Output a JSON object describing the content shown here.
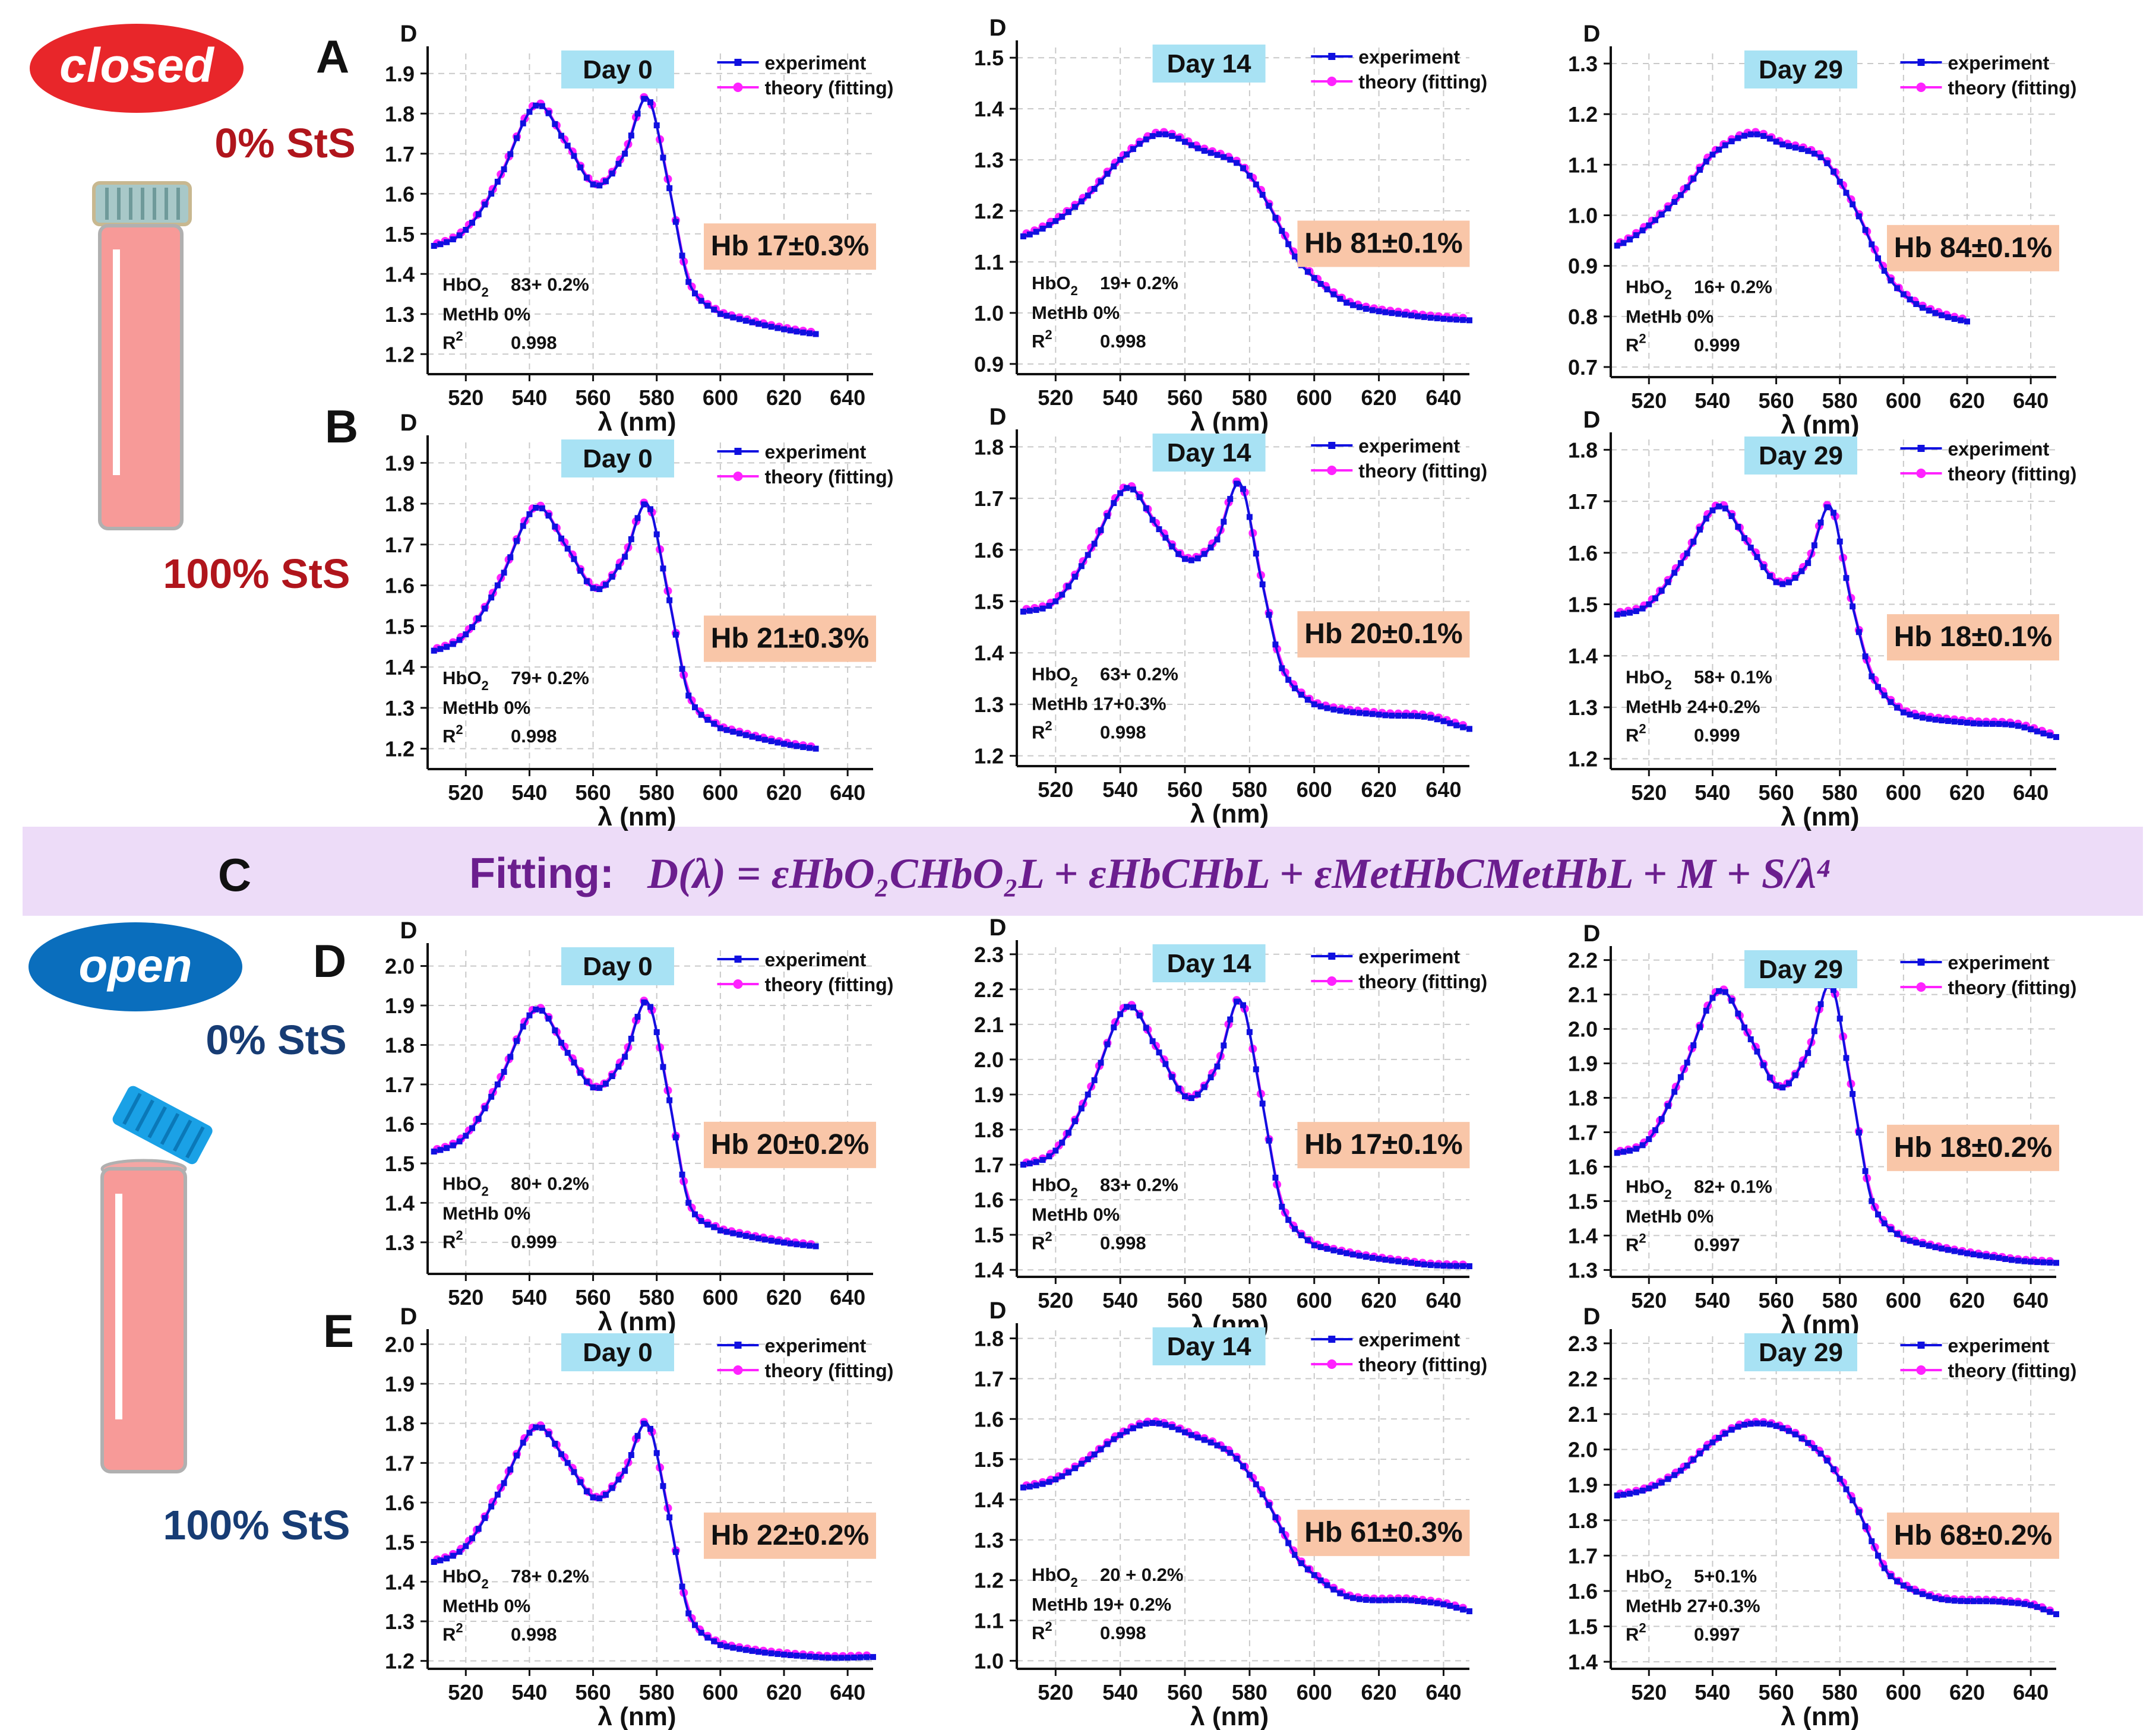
{
  "labels": {
    "closed": "closed",
    "open": "open",
    "sts_0": "0% StS",
    "sts_100": "100% StS",
    "section_c": "C",
    "fitting_prefix": "Fitting:",
    "fitting_formula": "D(λ) = εHbO₂CHbO₂L + εHbCHbL + εMetHbCMetHbL + M + S/λ⁴"
  },
  "colors": {
    "experiment": "#1010e0",
    "theory": "#ff22ff",
    "day_box": "#a8e2f4",
    "hb_box": "#f9c6a8",
    "closed_red": "#e8262a",
    "open_blue": "#0a6ebd",
    "dark_red": "#b0151c",
    "dark_blue": "#173c74",
    "fit_band": "#eddcf8",
    "fit_text": "#6b1e8e",
    "vial_pink": "#f79a98",
    "cap_blue": "#1aa1e6",
    "cap_teal": "#a8c8c8"
  },
  "icons": {
    "closed_vial": "closed-vial-icon",
    "open_vial": "open-vial-icon"
  },
  "chart_data": [
    {
      "type": "line",
      "panel": "A",
      "day": "Day 0",
      "hb": "Hb 17±0.3%",
      "ylabel": "D",
      "xlabel": "λ (nm)",
      "legend": [
        "experiment",
        "theory (fitting)"
      ],
      "xlim": [
        508,
        648
      ],
      "ylim": [
        1.15,
        1.95
      ],
      "yticks": [
        "1.2",
        "1.3",
        "1.4",
        "1.5",
        "1.6",
        "1.7",
        "1.8",
        "1.9"
      ],
      "xticks": [
        "520",
        "540",
        "560",
        "580",
        "600",
        "620",
        "640"
      ],
      "fit": {
        "hbo2": "83+ 0.2%",
        "methb": "0%",
        "r2": "0.998"
      },
      "x": [
        510,
        520,
        530,
        542,
        552,
        561,
        570,
        577,
        583,
        590,
        600,
        630
      ],
      "y": [
        1.47,
        1.51,
        1.63,
        1.82,
        1.72,
        1.62,
        1.7,
        1.84,
        1.65,
        1.38,
        1.3,
        1.25
      ]
    },
    {
      "type": "line",
      "panel": "A",
      "day": "Day 14",
      "hb": "Hb 81±0.1%",
      "ylabel": "D",
      "xlabel": "λ (nm)",
      "legend": [
        "experiment",
        "theory (fitting)"
      ],
      "xlim": [
        508,
        648
      ],
      "ylim": [
        0.88,
        1.52
      ],
      "yticks": [
        "0.9",
        "1.0",
        "1.1",
        "1.2",
        "1.3",
        "1.4",
        "1.5"
      ],
      "xticks": [
        "520",
        "540",
        "560",
        "580",
        "600",
        "620",
        "640"
      ],
      "fit": {
        "hbo2": "19+ 0.2%",
        "methb": "0%",
        "r2": "0.998"
      },
      "x": [
        510,
        520,
        530,
        540,
        552,
        565,
        577,
        585,
        595,
        610,
        630,
        650
      ],
      "y": [
        1.15,
        1.18,
        1.23,
        1.3,
        1.35,
        1.32,
        1.29,
        1.22,
        1.1,
        1.02,
        0.995,
        0.985
      ]
    },
    {
      "type": "line",
      "panel": "A",
      "day": "Day 29",
      "hb": "Hb 84±0.1%",
      "ylabel": "D",
      "xlabel": "λ (nm)",
      "legend": [
        "experiment",
        "theory (fitting)"
      ],
      "xlim": [
        508,
        648
      ],
      "ylim": [
        0.68,
        1.32
      ],
      "yticks": [
        "0.7",
        "0.8",
        "0.9",
        "1.0",
        "1.1",
        "1.2",
        "1.3"
      ],
      "xticks": [
        "520",
        "540",
        "560",
        "580",
        "600",
        "620",
        "640"
      ],
      "fit": {
        "hbo2": "16+ 0.2%",
        "methb": "0%",
        "r2": "0.999"
      },
      "x": [
        510,
        520,
        530,
        540,
        552,
        562,
        575,
        585,
        595,
        605,
        620
      ],
      "y": [
        0.94,
        0.98,
        1.04,
        1.12,
        1.16,
        1.14,
        1.11,
        1.01,
        0.88,
        0.82,
        0.79
      ]
    },
    {
      "type": "line",
      "panel": "B",
      "day": "Day 0",
      "hb": "Hb 21±0.3%",
      "ylabel": "D",
      "xlabel": "λ (nm)",
      "legend": [
        "experiment",
        "theory (fitting)"
      ],
      "xlim": [
        508,
        648
      ],
      "ylim": [
        1.15,
        1.95
      ],
      "yticks": [
        "1.2",
        "1.3",
        "1.4",
        "1.5",
        "1.6",
        "1.7",
        "1.8",
        "1.9"
      ],
      "xticks": [
        "520",
        "540",
        "560",
        "580",
        "600",
        "620",
        "640"
      ],
      "fit": {
        "hbo2": "79+ 0.2%",
        "methb": "0%",
        "r2": "0.998"
      },
      "x": [
        510,
        520,
        530,
        542,
        552,
        561,
        570,
        577,
        583,
        590,
        600,
        630
      ],
      "y": [
        1.44,
        1.48,
        1.6,
        1.79,
        1.69,
        1.59,
        1.67,
        1.8,
        1.6,
        1.33,
        1.25,
        1.2
      ]
    },
    {
      "type": "line",
      "panel": "B",
      "day": "Day 14",
      "hb": "Hb 20±0.1%",
      "ylabel": "D",
      "xlabel": "λ (nm)",
      "legend": [
        "experiment",
        "theory (fitting)"
      ],
      "xlim": [
        508,
        648
      ],
      "ylim": [
        1.18,
        1.82
      ],
      "yticks": [
        "1.2",
        "1.3",
        "1.4",
        "1.5",
        "1.6",
        "1.7",
        "1.8"
      ],
      "xticks": [
        "520",
        "540",
        "560",
        "580",
        "600",
        "620",
        "640"
      ],
      "fit": {
        "hbo2": "63+ 0.2%",
        "methb": "17+0.3%",
        "r2": "0.998"
      },
      "x": [
        510,
        520,
        530,
        542,
        552,
        561,
        570,
        577,
        583,
        590,
        600,
        620,
        635,
        650
      ],
      "y": [
        1.48,
        1.5,
        1.59,
        1.72,
        1.64,
        1.58,
        1.62,
        1.73,
        1.56,
        1.37,
        1.3,
        1.28,
        1.275,
        1.25
      ]
    },
    {
      "type": "line",
      "panel": "B",
      "day": "Day 29",
      "hb": "Hb 18±0.1%",
      "ylabel": "D",
      "xlabel": "λ (nm)",
      "legend": [
        "experiment",
        "theory (fitting)"
      ],
      "xlim": [
        508,
        648
      ],
      "ylim": [
        1.18,
        1.82
      ],
      "yticks": [
        "1.2",
        "1.3",
        "1.4",
        "1.5",
        "1.6",
        "1.7",
        "1.8"
      ],
      "xticks": [
        "520",
        "540",
        "560",
        "580",
        "600",
        "620",
        "640"
      ],
      "fit": {
        "hbo2": "58+ 0.1%",
        "methb": "24+0.2%",
        "r2": "0.999"
      },
      "x": [
        510,
        520,
        530,
        542,
        552,
        561,
        570,
        577,
        583,
        590,
        600,
        620,
        635,
        650
      ],
      "y": [
        1.48,
        1.5,
        1.58,
        1.69,
        1.61,
        1.54,
        1.58,
        1.69,
        1.52,
        1.36,
        1.29,
        1.27,
        1.265,
        1.24
      ]
    },
    {
      "type": "line",
      "panel": "D",
      "day": "Day 0",
      "hb": "Hb 20±0.2%",
      "ylabel": "D",
      "xlabel": "λ (nm)",
      "legend": [
        "experiment",
        "theory (fitting)"
      ],
      "xlim": [
        508,
        648
      ],
      "ylim": [
        1.22,
        2.04
      ],
      "yticks": [
        "1.3",
        "1.4",
        "1.5",
        "1.6",
        "1.7",
        "1.8",
        "1.9",
        "2.0"
      ],
      "xticks": [
        "520",
        "540",
        "560",
        "580",
        "600",
        "620",
        "640"
      ],
      "fit": {
        "hbo2": "80+ 0.2%",
        "methb": "0%",
        "r2": "0.999"
      },
      "x": [
        510,
        520,
        530,
        542,
        552,
        561,
        570,
        577,
        583,
        590,
        600,
        630
      ],
      "y": [
        1.53,
        1.57,
        1.7,
        1.89,
        1.78,
        1.69,
        1.77,
        1.91,
        1.7,
        1.4,
        1.33,
        1.29
      ]
    },
    {
      "type": "line",
      "panel": "D",
      "day": "Day 14",
      "hb": "Hb 17±0.1%",
      "ylabel": "D",
      "xlabel": "λ (nm)",
      "legend": [
        "experiment",
        "theory (fitting)"
      ],
      "xlim": [
        508,
        648
      ],
      "ylim": [
        1.38,
        2.32
      ],
      "yticks": [
        "1.4",
        "1.5",
        "1.6",
        "1.7",
        "1.8",
        "1.9",
        "2.0",
        "2.1",
        "2.2",
        "2.3"
      ],
      "xticks": [
        "520",
        "540",
        "560",
        "580",
        "600",
        "620",
        "640"
      ],
      "fit": {
        "hbo2": "83+ 0.2%",
        "methb": "0%",
        "r2": "0.998"
      },
      "x": [
        510,
        520,
        530,
        542,
        552,
        561,
        570,
        577,
        583,
        590,
        600,
        630,
        650
      ],
      "y": [
        1.7,
        1.74,
        1.9,
        2.15,
        2.02,
        1.89,
        1.98,
        2.17,
        1.92,
        1.58,
        1.47,
        1.42,
        1.41
      ]
    },
    {
      "type": "line",
      "panel": "D",
      "day": "Day 29",
      "hb": "Hb 18±0.2%",
      "ylabel": "D",
      "xlabel": "λ (nm)",
      "legend": [
        "experiment",
        "theory (fitting)"
      ],
      "xlim": [
        508,
        648
      ],
      "ylim": [
        1.28,
        2.22
      ],
      "yticks": [
        "1.3",
        "1.4",
        "1.5",
        "1.6",
        "1.7",
        "1.8",
        "1.9",
        "2.0",
        "2.1",
        "2.2"
      ],
      "xticks": [
        "520",
        "540",
        "560",
        "580",
        "600",
        "620",
        "640"
      ],
      "fit": {
        "hbo2": "82+ 0.1%",
        "methb": "0%",
        "r2": "0.997"
      },
      "x": [
        510,
        520,
        530,
        542,
        552,
        561,
        570,
        577,
        583,
        590,
        600,
        630,
        650
      ],
      "y": [
        1.64,
        1.68,
        1.86,
        2.11,
        1.97,
        1.83,
        1.93,
        2.13,
        1.86,
        1.5,
        1.39,
        1.335,
        1.32
      ]
    },
    {
      "type": "line",
      "panel": "E",
      "day": "Day 0",
      "hb": "Hb 22±0.2%",
      "ylabel": "D",
      "xlabel": "λ (nm)",
      "legend": [
        "experiment",
        "theory (fitting)"
      ],
      "xlim": [
        508,
        648
      ],
      "ylim": [
        1.18,
        2.02
      ],
      "yticks": [
        "1.2",
        "1.3",
        "1.4",
        "1.5",
        "1.6",
        "1.7",
        "1.8",
        "1.9",
        "2.0"
      ],
      "xticks": [
        "520",
        "540",
        "560",
        "580",
        "600",
        "620",
        "640"
      ],
      "fit": {
        "hbo2": "78+ 0.2%",
        "methb": "0%",
        "r2": "0.998"
      },
      "x": [
        510,
        520,
        530,
        542,
        552,
        561,
        570,
        577,
        583,
        590,
        600,
        630,
        650
      ],
      "y": [
        1.45,
        1.49,
        1.62,
        1.79,
        1.7,
        1.61,
        1.68,
        1.8,
        1.6,
        1.32,
        1.24,
        1.21,
        1.21
      ]
    },
    {
      "type": "line",
      "panel": "E",
      "day": "Day 14",
      "hb": "Hb 61±0.3%",
      "ylabel": "D",
      "xlabel": "λ (nm)",
      "legend": [
        "experiment",
        "theory (fitting)"
      ],
      "xlim": [
        508,
        648
      ],
      "ylim": [
        0.98,
        1.82
      ],
      "yticks": [
        "1.0",
        "1.1",
        "1.2",
        "1.3",
        "1.4",
        "1.5",
        "1.6",
        "1.7",
        "1.8"
      ],
      "xticks": [
        "520",
        "540",
        "560",
        "580",
        "600",
        "620",
        "640"
      ],
      "fit": {
        "hbo2": "20 + 0.2%",
        "methb": "19+ 0.2%",
        "r2": "0.998"
      },
      "x": [
        510,
        520,
        530,
        540,
        550,
        562,
        575,
        585,
        595,
        610,
        630,
        640,
        650
      ],
      "y": [
        1.43,
        1.45,
        1.5,
        1.56,
        1.59,
        1.56,
        1.51,
        1.4,
        1.25,
        1.16,
        1.15,
        1.14,
        1.12
      ]
    },
    {
      "type": "line",
      "panel": "E",
      "day": "Day 29",
      "hb": "Hb 68±0.2%",
      "ylabel": "D",
      "xlabel": "λ (nm)",
      "legend": [
        "experiment",
        "theory (fitting)"
      ],
      "xlim": [
        508,
        648
      ],
      "ylim": [
        1.38,
        2.32
      ],
      "yticks": [
        "1.4",
        "1.5",
        "1.6",
        "1.7",
        "1.8",
        "1.9",
        "2.0",
        "2.1",
        "2.2",
        "2.3"
      ],
      "xticks": [
        "520",
        "540",
        "560",
        "580",
        "600",
        "620",
        "640"
      ],
      "fit": {
        "hbo2": "5+0.1%",
        "methb": "27+0.3%",
        "r2": "0.997"
      },
      "x": [
        510,
        520,
        530,
        540,
        550,
        562,
        575,
        585,
        595,
        610,
        630,
        640,
        650
      ],
      "y": [
        1.87,
        1.89,
        1.94,
        2.02,
        2.07,
        2.06,
        1.98,
        1.84,
        1.65,
        1.58,
        1.57,
        1.56,
        1.53
      ]
    }
  ]
}
